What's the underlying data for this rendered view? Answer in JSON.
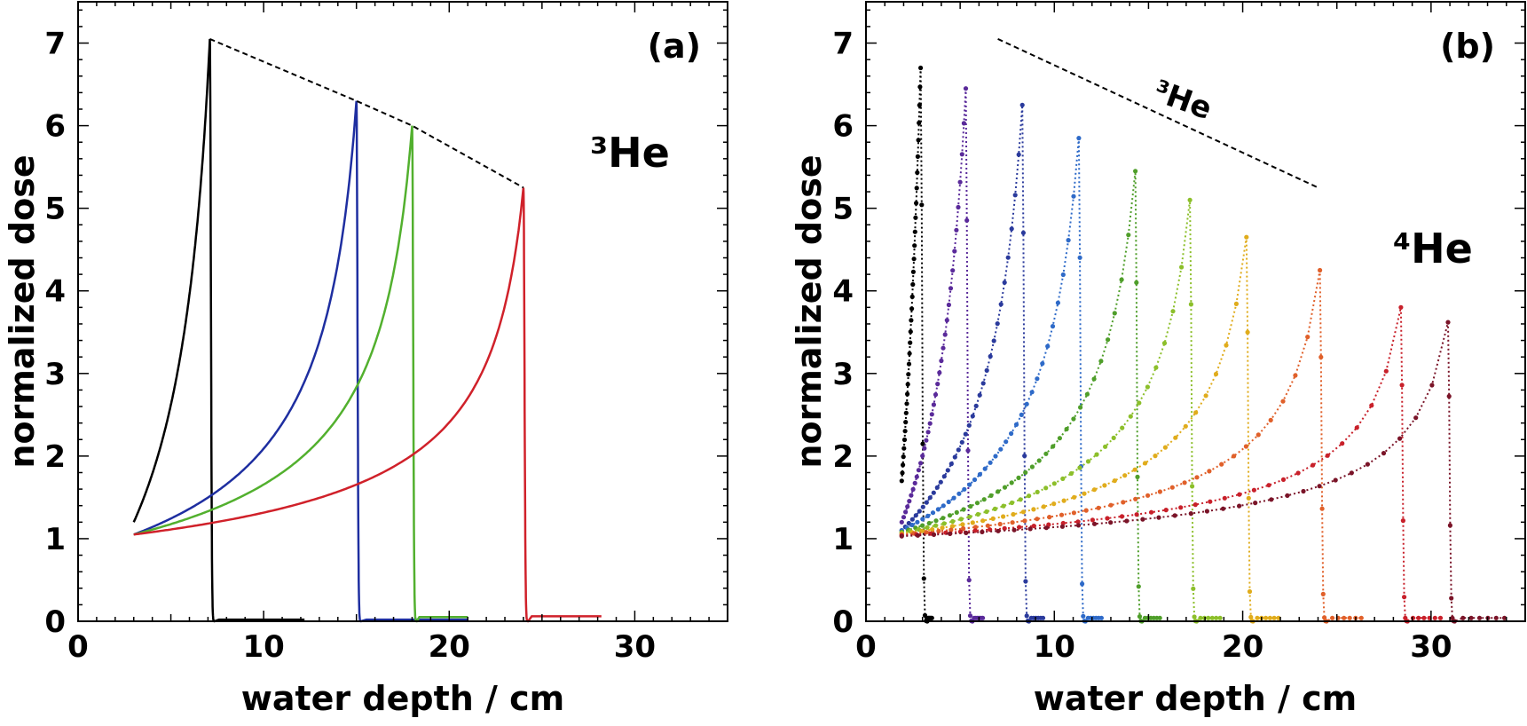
{
  "chart_data": [
    {
      "type": "line",
      "panel_label": "(a)",
      "annotation": "³He",
      "xlabel": "water depth / cm",
      "ylabel": "normalized dose",
      "xlim": [
        0,
        35
      ],
      "ylim": [
        0,
        7.5
      ],
      "xticks": [
        0,
        10,
        20,
        30
      ],
      "yticks": [
        0,
        1,
        2,
        3,
        4,
        5,
        6,
        7
      ],
      "grid": false,
      "series": [
        {
          "color": "#000000",
          "start": 3.0,
          "entrance": 1.2,
          "peak_x": 7.1,
          "peak_y": 7.05,
          "tail_end": 12.2,
          "tail_y": 0.02
        },
        {
          "color": "#1e2ea0",
          "start": 3.0,
          "entrance": 1.05,
          "peak_x": 15.0,
          "peak_y": 6.3,
          "tail_end": 21.0,
          "tail_y": 0.02
        },
        {
          "color": "#52b02e",
          "start": 3.0,
          "entrance": 1.05,
          "peak_x": 18.0,
          "peak_y": 6.0,
          "tail_end": 21.0,
          "tail_y": 0.05
        },
        {
          "color": "#d0212a",
          "start": 3.0,
          "entrance": 1.05,
          "peak_x": 24.0,
          "peak_y": 5.25,
          "tail_end": 28.2,
          "tail_y": 0.06
        }
      ],
      "envelope": [
        [
          7.1,
          7.05
        ],
        [
          15.0,
          6.3
        ],
        [
          18.0,
          6.0
        ],
        [
          24.0,
          5.25
        ]
      ]
    },
    {
      "type": "scatter",
      "panel_label": "(b)",
      "annotation": "⁴He",
      "envelope_label": "³He",
      "xlabel": "water depth / cm",
      "ylabel": "normalized dose",
      "xlim": [
        0,
        35
      ],
      "ylim": [
        0,
        7.5
      ],
      "xticks": [
        0,
        10,
        20,
        30
      ],
      "yticks": [
        0,
        1,
        2,
        3,
        4,
        5,
        6,
        7
      ],
      "grid": false,
      "series": [
        {
          "color": "#000000",
          "start": 1.9,
          "entrance": 1.7,
          "peak_x": 2.9,
          "peak_y": 6.7,
          "tail_end": 3.5
        },
        {
          "color": "#5a2a9a",
          "start": 1.9,
          "entrance": 1.2,
          "peak_x": 5.3,
          "peak_y": 6.45,
          "tail_end": 6.2
        },
        {
          "color": "#2a3a9c",
          "start": 1.9,
          "entrance": 1.1,
          "peak_x": 8.3,
          "peak_y": 6.25,
          "tail_end": 9.4
        },
        {
          "color": "#2e6ac8",
          "start": 1.9,
          "entrance": 1.1,
          "peak_x": 11.3,
          "peak_y": 5.85,
          "tail_end": 12.5
        },
        {
          "color": "#4f9e2a",
          "start": 1.9,
          "entrance": 1.08,
          "peak_x": 14.3,
          "peak_y": 5.45,
          "tail_end": 15.6
        },
        {
          "color": "#8cbf2a",
          "start": 1.9,
          "entrance": 1.07,
          "peak_x": 17.2,
          "peak_y": 5.1,
          "tail_end": 18.8
        },
        {
          "color": "#e0ac1c",
          "start": 1.9,
          "entrance": 1.06,
          "peak_x": 20.2,
          "peak_y": 4.65,
          "tail_end": 21.9
        },
        {
          "color": "#e0602a",
          "start": 1.9,
          "entrance": 1.05,
          "peak_x": 24.1,
          "peak_y": 4.25,
          "tail_end": 26.3
        },
        {
          "color": "#c8202a",
          "start": 1.9,
          "entrance": 1.04,
          "peak_x": 28.4,
          "peak_y": 3.8,
          "tail_end": 30.5
        },
        {
          "color": "#7a1428",
          "start": 1.9,
          "entrance": 1.03,
          "peak_x": 30.9,
          "peak_y": 3.62,
          "tail_end": 33.9
        }
      ],
      "envelope": [
        [
          7.0,
          7.05
        ],
        [
          24.0,
          5.25
        ]
      ]
    }
  ]
}
